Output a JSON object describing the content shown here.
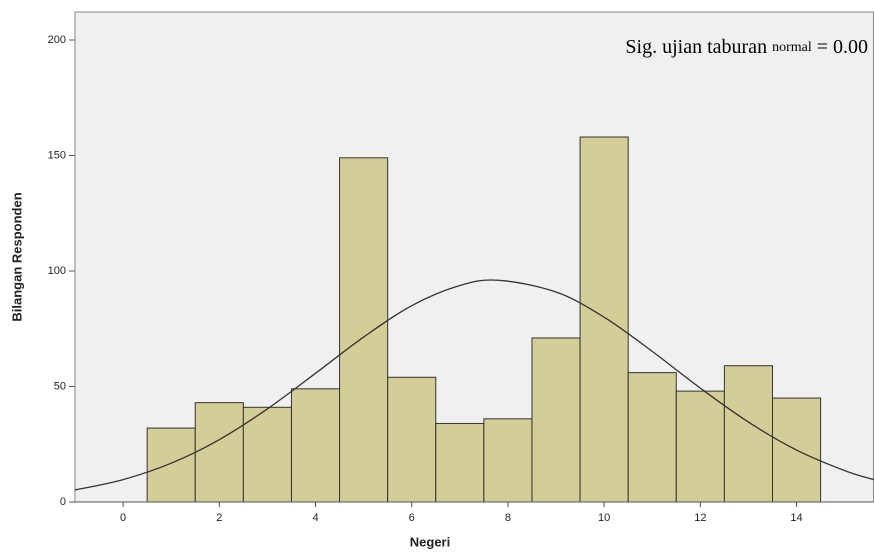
{
  "chart_data": {
    "type": "histogram",
    "xlabel": "Negeri",
    "ylabel": "Bilangan Responden",
    "annotation": [
      "Sig. ujian taburan",
      "normal",
      "= 0.00"
    ],
    "bins": [
      0.5,
      1.5,
      2.5,
      3.5,
      4.5,
      5.5,
      6.5,
      7.5,
      8.5,
      9.5,
      10.5,
      11.5,
      12.5,
      13.5,
      14.5
    ],
    "values": [
      32,
      43,
      41,
      49,
      149,
      54,
      34,
      36,
      71,
      158,
      56,
      48,
      59,
      45
    ],
    "color": "#d3ce97",
    "curve": {
      "x": [
        -1,
        0,
        1,
        2,
        3,
        4,
        5,
        6,
        7,
        7.8,
        9,
        10,
        11,
        12,
        13,
        14,
        15,
        15.6
      ],
      "values": [
        5.2,
        9.7,
        16.8,
        27.0,
        40.3,
        55.7,
        71.4,
        85.0,
        93.7,
        96,
        90.9,
        80.0,
        65.2,
        49.3,
        34.6,
        22.5,
        13.6,
        9.7
      ],
      "color": "#333333"
    },
    "xlim": [
      -1,
      15.6
    ],
    "ylim": [
      0,
      200
    ],
    "xticks": [
      0,
      2,
      4,
      6,
      8,
      10,
      12,
      14
    ],
    "yticks": [
      0,
      50,
      100,
      150,
      200
    ]
  }
}
